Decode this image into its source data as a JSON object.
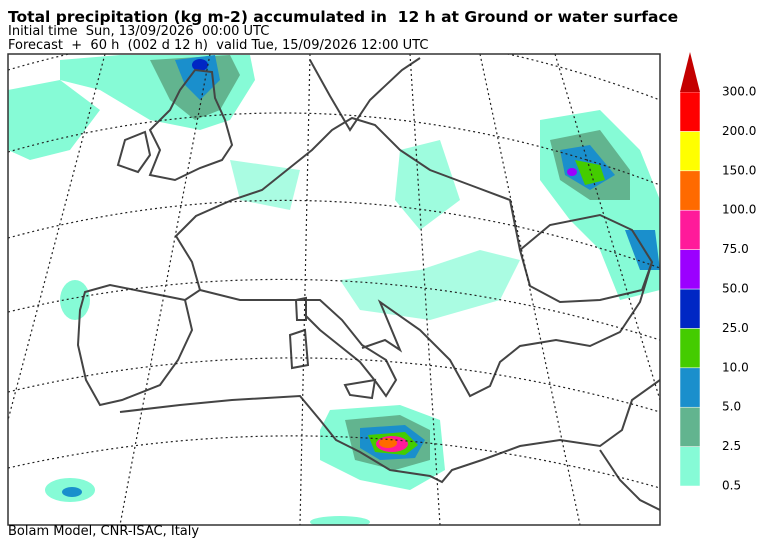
{
  "header": {
    "title": "Total precipitation (kg m-2) accumulated in  12 h at Ground or water surface",
    "initial_time": "Initial time  Sun, 13/09/2026  00:00 UTC",
    "forecast": "Forecast  +  60 h  (002 d 12 h)  valid Tue, 15/09/2026 12:00 UTC"
  },
  "legend": {
    "over_color": "#c40000",
    "levels": [
      {
        "label": "0.5",
        "color": "#86fbd6"
      },
      {
        "label": "2.5",
        "color": "#62b48f"
      },
      {
        "label": "5.0",
        "color": "#1a8fcc"
      },
      {
        "label": "10.0",
        "color": "#44cc00"
      },
      {
        "label": "25.0",
        "color": "#0027c4"
      },
      {
        "label": "50.0",
        "color": "#9b00ff"
      },
      {
        "label": "75.0",
        "color": "#ff1a9a"
      },
      {
        "label": "100.0",
        "color": "#ff6a00"
      },
      {
        "label": "150.0",
        "color": "#ffff00"
      },
      {
        "label": "200.0",
        "color": "#ff0000"
      },
      {
        "label": "300.0",
        "color": "#ff0000"
      }
    ]
  },
  "footer": {
    "credit": "Bolam Model, CNR-ISAC, Italy"
  }
}
